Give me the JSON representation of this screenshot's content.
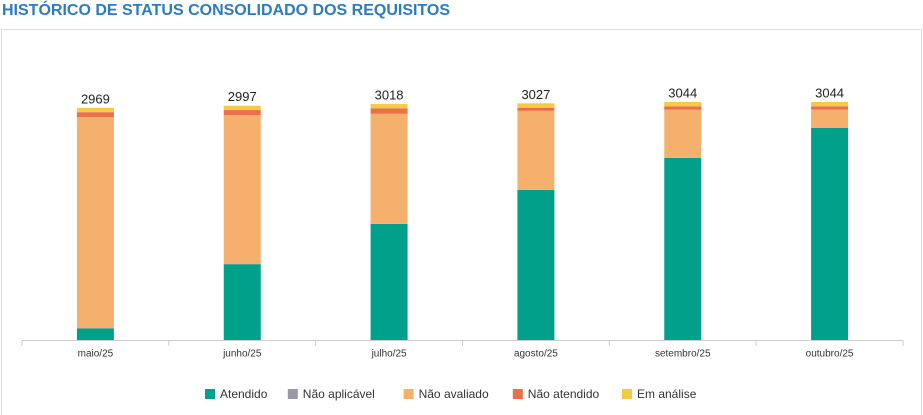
{
  "chart_data": {
    "type": "stacked-bar",
    "title": "HISTÓRICO DE STATUS CONSOLIDADO DOS REQUISITOS",
    "categories": [
      "maio/25",
      "junho/25",
      "julho/25",
      "agosto/25",
      "setembro/25",
      "outubro/25"
    ],
    "series": [
      {
        "name": "Atendido",
        "color": "#00a08a",
        "values": [
          150,
          970,
          1485,
          1920,
          2330,
          2714
        ]
      },
      {
        "name": "Não aplicável",
        "color": "#9a99a8",
        "values": [
          0,
          0,
          0,
          0,
          0,
          0
        ]
      },
      {
        "name": "Não avaliado",
        "color": "#f6b06d",
        "values": [
          2700,
          1907,
          1408,
          1011,
          618,
          234
        ]
      },
      {
        "name": "Não atendido",
        "color": "#ea6f4b",
        "values": [
          64,
          64,
          70,
          40,
          40,
          40
        ]
      },
      {
        "name": "Em análise",
        "color": "#f6ca45",
        "values": [
          55,
          56,
          55,
          56,
          56,
          56
        ]
      }
    ],
    "totals": [
      2969,
      2997,
      3018,
      3027,
      3044,
      3044
    ]
  }
}
